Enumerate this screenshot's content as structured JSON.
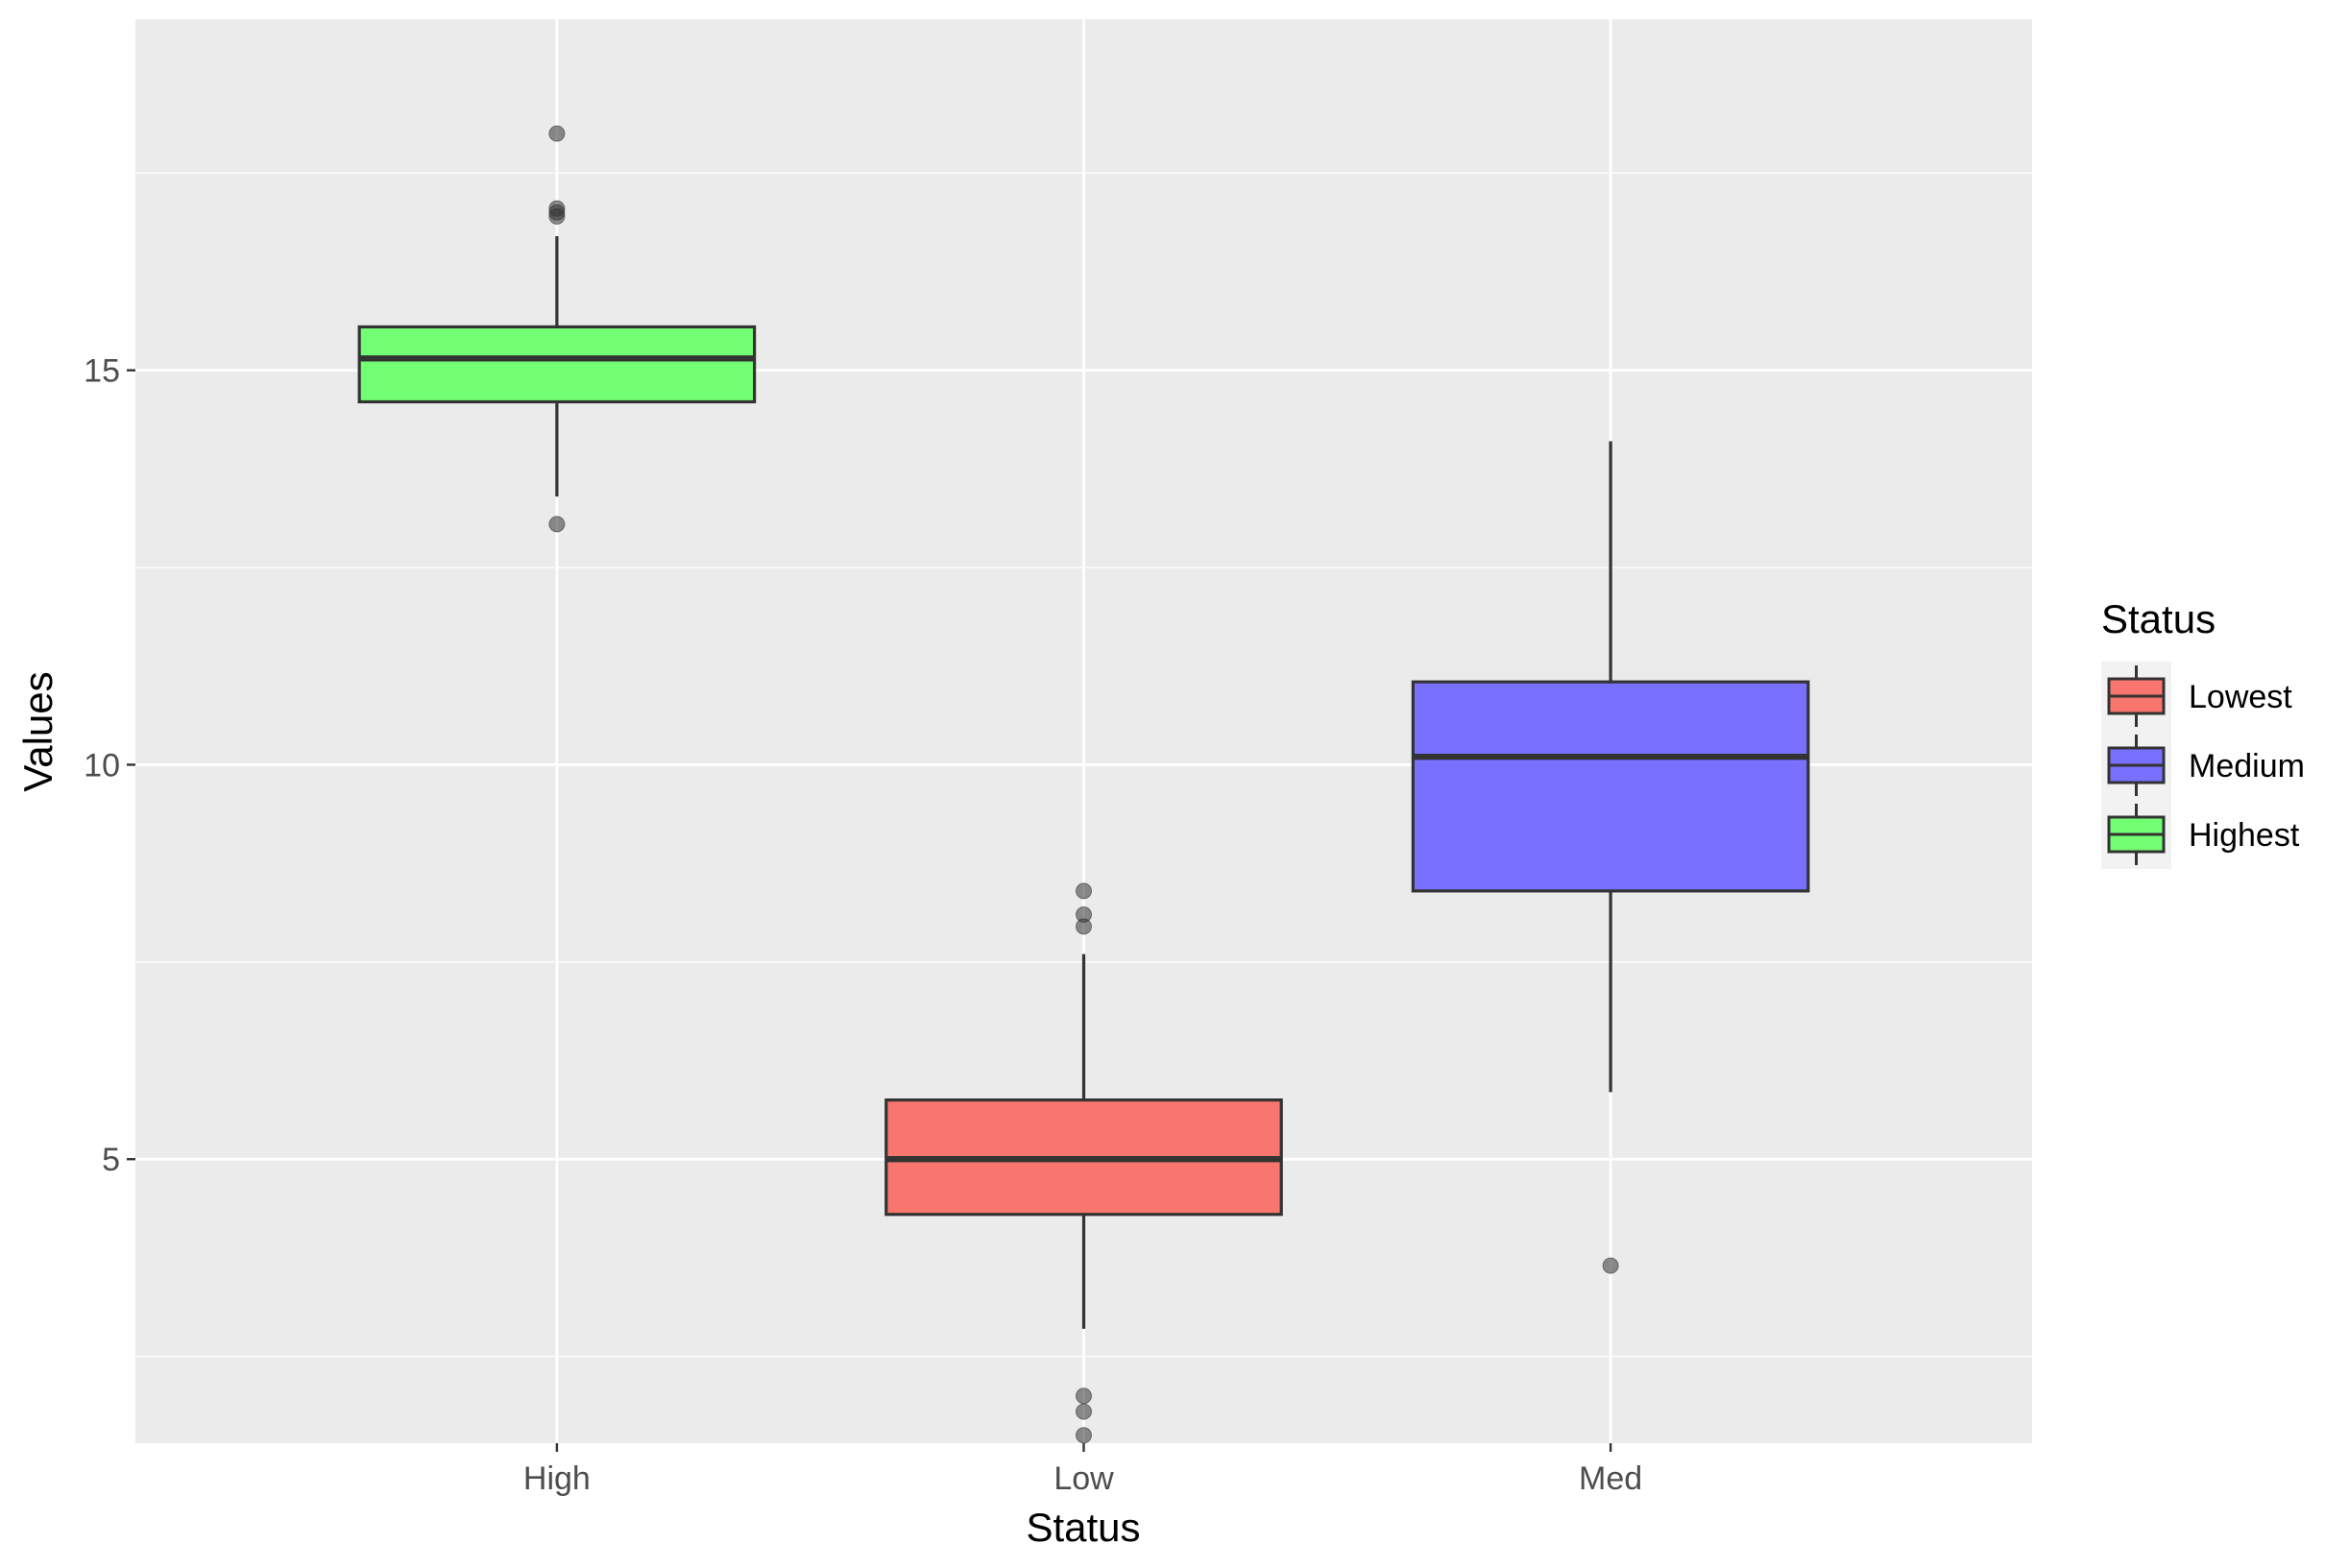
{
  "chart_data": {
    "type": "boxplot",
    "title": "",
    "xlabel": "Status",
    "ylabel": "Values",
    "categories": [
      "High",
      "Low",
      "Med"
    ],
    "ylim": [
      1.4,
      19.45
    ],
    "yticks": [
      5,
      10,
      15
    ],
    "ytick_labels": [
      "5",
      "10",
      "15"
    ],
    "grid": true,
    "legend": {
      "title": "Status",
      "placement": "right",
      "entries": [
        {
          "label": "Lowest",
          "color": "#F8766D"
        },
        {
          "label": "Medium",
          "color": "#7A70FF"
        },
        {
          "label": "Highest",
          "color": "#73FF73"
        }
      ]
    },
    "boxes": [
      {
        "category": "High",
        "legend_label": "Highest",
        "color": "#73FF73",
        "whisker_low": 13.4,
        "q1": 14.6,
        "median": 15.15,
        "q3": 15.55,
        "whisker_high": 16.7,
        "outliers": [
          18.0,
          17.05,
          17.0,
          16.95,
          13.05
        ]
      },
      {
        "category": "Low",
        "legend_label": "Lowest",
        "color": "#F8766D",
        "whisker_low": 2.85,
        "q1": 4.3,
        "median": 5.0,
        "q3": 5.75,
        "whisker_high": 7.6,
        "outliers": [
          8.4,
          8.1,
          7.95,
          2.0,
          1.8,
          1.5
        ]
      },
      {
        "category": "Med",
        "legend_label": "Medium",
        "color": "#7A70FF",
        "whisker_low": 5.85,
        "q1": 8.4,
        "median": 10.1,
        "q3": 11.05,
        "whisker_high": 14.1,
        "outliers": [
          3.65
        ]
      }
    ]
  }
}
